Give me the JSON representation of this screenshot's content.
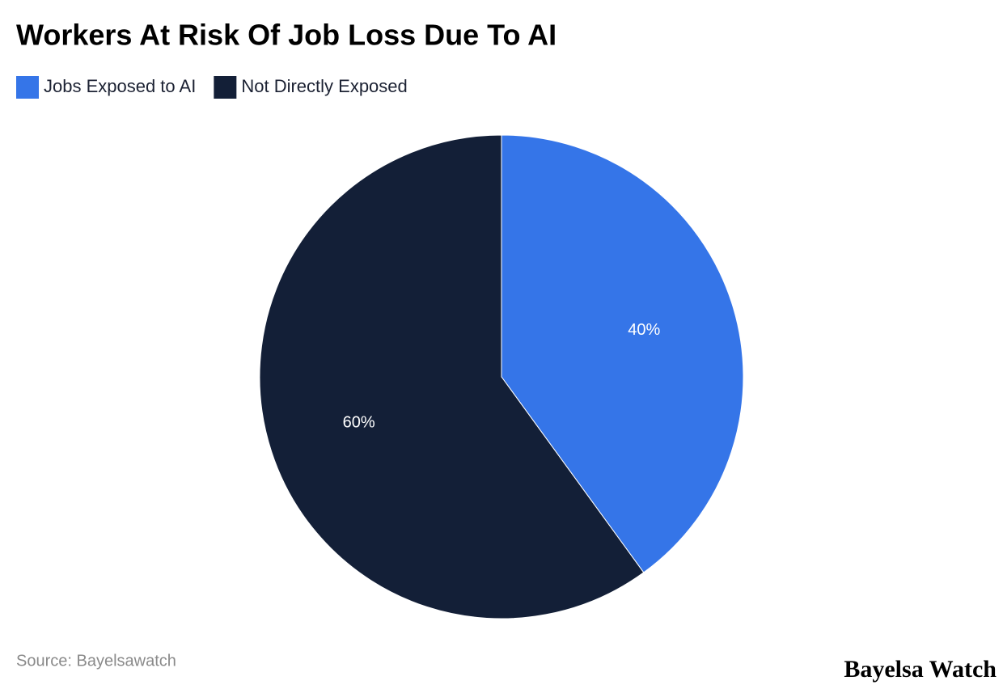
{
  "chart_data": {
    "type": "pie",
    "title": "Workers At Risk Of Job Loss Due To AI",
    "categories": [
      "Jobs Exposed to AI",
      "Not Directly Exposed"
    ],
    "values": [
      40,
      60
    ],
    "value_labels": [
      "40%",
      "60%"
    ],
    "colors": [
      "#3575e8",
      "#131f37"
    ],
    "legend": "top-left",
    "source": "Source: Bayelsawatch",
    "brand": "Bayelsa Watch"
  }
}
